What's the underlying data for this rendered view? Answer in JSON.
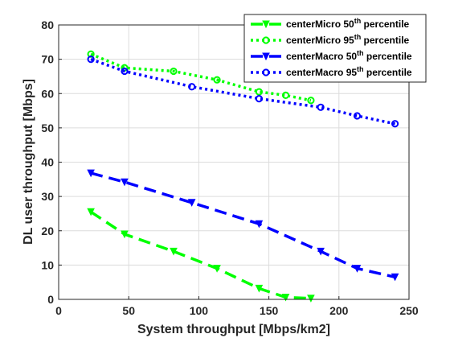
{
  "chart_data": {
    "type": "line",
    "title": "",
    "xlabel": "System throughput [Mbps/km2]",
    "ylabel": "DL user throughput [Mbps]",
    "xlim": [
      0,
      250
    ],
    "ylim": [
      0,
      80
    ],
    "xticks": [
      "0",
      "50",
      "100",
      "150",
      "200",
      "250"
    ],
    "yticks": [
      "0",
      "10",
      "20",
      "30",
      "40",
      "50",
      "60",
      "70",
      "80"
    ],
    "grid": true,
    "legend_position": "top-right",
    "series": [
      {
        "legend_prefix": "centerMicro 50",
        "legend_sup": "th",
        "legend_suffix": " percentile",
        "color": "#00ff00",
        "style": "dashed",
        "marker": "triangle",
        "x": [
          23,
          47,
          82,
          113,
          143,
          162,
          180
        ],
        "y": [
          25.5,
          19,
          14,
          9,
          3.2,
          0.6,
          0.3
        ]
      },
      {
        "legend_prefix": "centerMicro 95",
        "legend_sup": "th",
        "legend_suffix": " percentile",
        "color": "#00ff00",
        "style": "dotted",
        "marker": "circle",
        "x": [
          23,
          47,
          82,
          113,
          143,
          162,
          180
        ],
        "y": [
          71.5,
          67.5,
          66.5,
          64,
          60.5,
          59.5,
          58
        ]
      },
      {
        "legend_prefix": "centerMacro 50",
        "legend_sup": "th",
        "legend_suffix": " percentile",
        "color": "#0000ff",
        "style": "dashed",
        "marker": "triangle",
        "x": [
          23,
          47,
          95,
          143,
          187,
          213,
          240
        ],
        "y": [
          36.8,
          34.2,
          28.2,
          22,
          14,
          9,
          6.5
        ]
      },
      {
        "legend_prefix": "centerMacro 95",
        "legend_sup": "th",
        "legend_suffix": " percentile",
        "color": "#0000ff",
        "style": "dotted",
        "marker": "circle",
        "x": [
          23,
          47,
          95,
          143,
          187,
          213,
          240
        ],
        "y": [
          70,
          66.5,
          62,
          58.5,
          56,
          53.5,
          51.2
        ]
      }
    ]
  }
}
